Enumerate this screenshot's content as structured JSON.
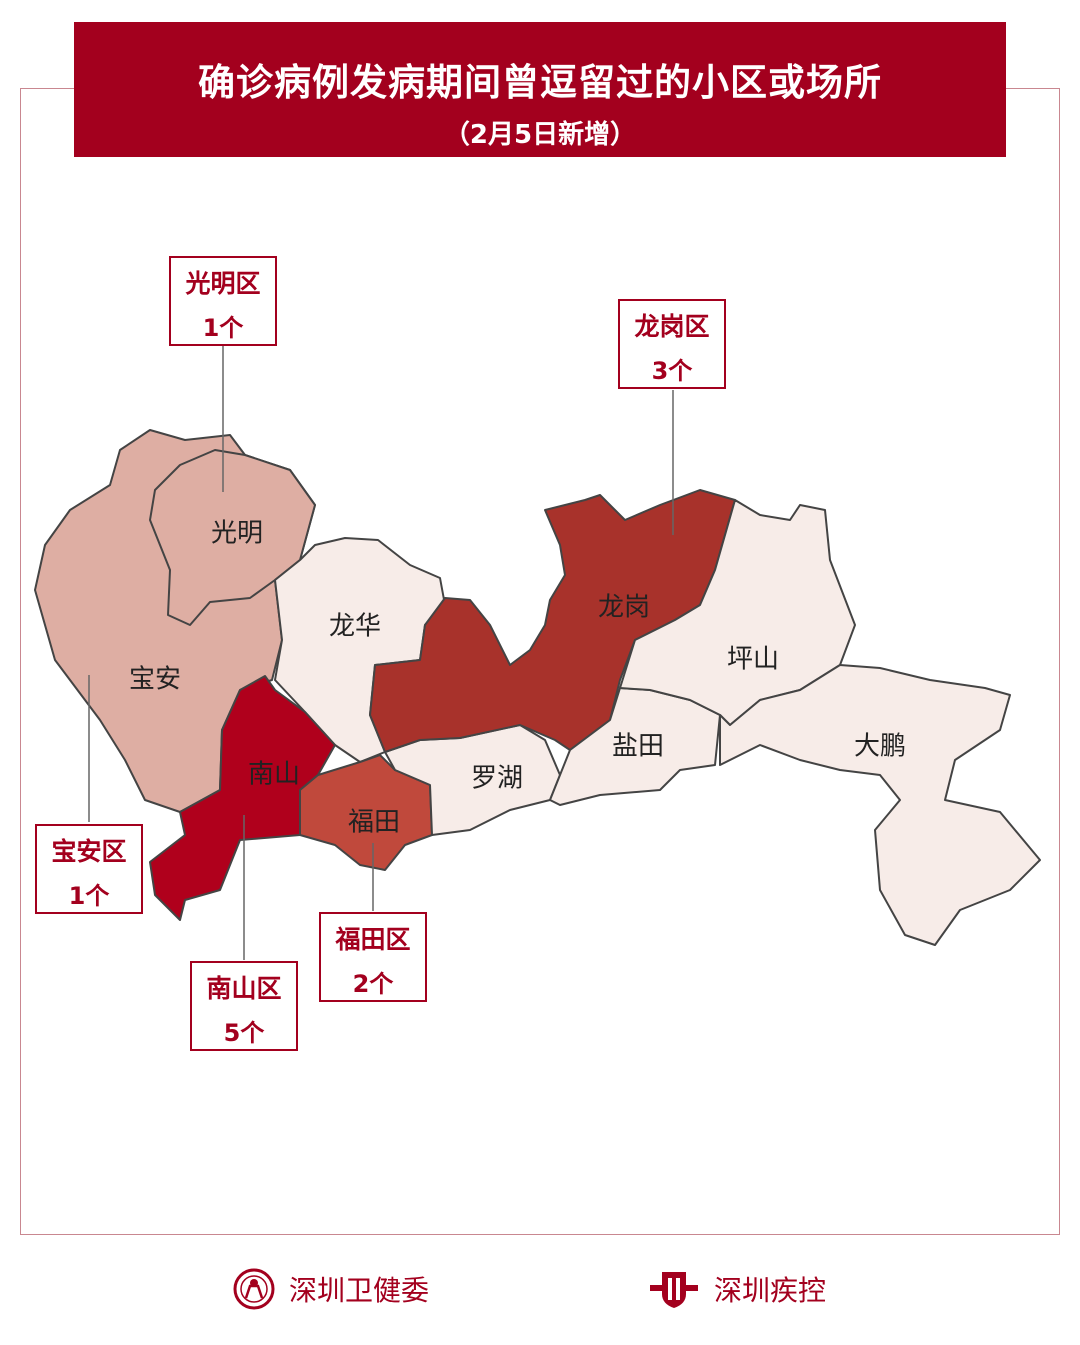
{
  "header": {
    "title": "确诊病例发病期间曾逗留过的小区或场所",
    "subtitle": "（2月5日新增）"
  },
  "colors": {
    "accent": "#a3001e",
    "level5": "#b0001c",
    "level3": "#a8322b",
    "level2": "#c0493c",
    "level1": "#deaea3",
    "level0": "#f7ece8"
  },
  "districts": {
    "baoan": "宝安",
    "guangming": "光明",
    "longhua": "龙华",
    "nanshan": "南山",
    "futian": "福田",
    "luohu": "罗湖",
    "longgang": "龙岗",
    "yantian": "盐田",
    "pingshan": "坪山",
    "dapeng": "大鹏"
  },
  "callouts": [
    {
      "name": "光明区",
      "count": "1个"
    },
    {
      "name": "龙岗区",
      "count": "3个"
    },
    {
      "name": "宝安区",
      "count": "1个"
    },
    {
      "name": "福田区",
      "count": "2个"
    },
    {
      "name": "南山区",
      "count": "5个"
    }
  ],
  "footer": {
    "left_org": "深圳卫健委",
    "right_org": "深圳疾控",
    "left_logo": "shenzhen-health-commission-emblem",
    "right_logo": "shenzhen-cdc-logo"
  }
}
